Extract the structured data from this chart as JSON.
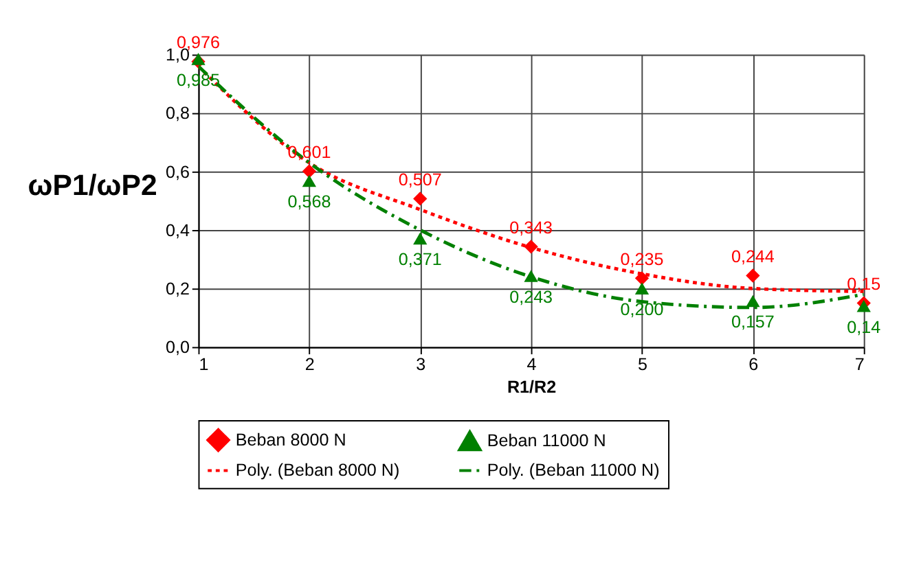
{
  "chart_data": {
    "type": "scatter",
    "xlabel": "R1/R2",
    "ylabel": "ωP1/ωP2",
    "x": [
      1,
      2,
      3,
      4,
      5,
      6,
      7
    ],
    "series": [
      {
        "name": "Beban 8000 N",
        "color": "#ff0000",
        "marker": "diamond",
        "values": [
          0.976,
          0.601,
          0.507,
          0.343,
          0.235,
          0.244,
          0.15
        ],
        "value_labels": [
          "0,976",
          "0,601",
          "0,507",
          "0,343",
          "0,235",
          "0,244",
          "0,15"
        ]
      },
      {
        "name": "Beban 11000 N",
        "color": "#008000",
        "marker": "triangle",
        "values": [
          0.985,
          0.568,
          0.371,
          0.243,
          0.2,
          0.157,
          0.14
        ],
        "value_labels": [
          "0,985",
          "0,568",
          "0,371",
          "0,243",
          "0,200",
          "0,157",
          "0,14"
        ]
      },
      {
        "name": "Poly. (Beban 8000 N)",
        "type": "line",
        "color": "#ff0000",
        "marker": "none",
        "line_style": "dotted",
        "values": [
          0.96,
          0.63,
          0.47,
          0.34,
          0.25,
          0.2,
          0.19
        ]
      },
      {
        "name": "Poly. (Beban 11000 N)",
        "type": "line",
        "color": "#008000",
        "marker": "none",
        "line_style": "dashed",
        "values": [
          0.96,
          0.63,
          0.4,
          0.24,
          0.155,
          0.135,
          0.18
        ]
      }
    ],
    "xlim": [
      1,
      7
    ],
    "xticks": [
      1,
      2,
      3,
      4,
      5,
      6,
      7
    ],
    "ylim": [
      0,
      1.0
    ],
    "yticks": [
      {
        "value": 0,
        "label": "0,0"
      },
      {
        "value": 0.2,
        "label": "0,2"
      },
      {
        "value": 0.4,
        "label": "0,4"
      },
      {
        "value": 0.6,
        "label": "0,6"
      },
      {
        "value": 0.8,
        "label": "0,8"
      },
      {
        "value": 1.0,
        "label": "1,0"
      }
    ],
    "grid": true,
    "legend": "bottom"
  }
}
